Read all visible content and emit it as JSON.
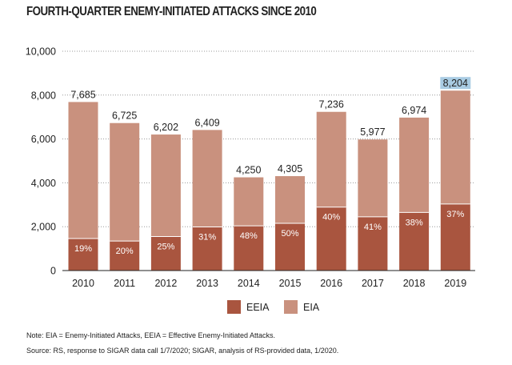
{
  "chart_data": {
    "type": "bar",
    "stacked": true,
    "title": "FOURTH-QUARTER ENEMY-INITIATED ATTACKS SINCE 2010",
    "categories": [
      "2010",
      "2011",
      "2012",
      "2013",
      "2014",
      "2015",
      "2016",
      "2017",
      "2018",
      "2019"
    ],
    "totals": [
      7685,
      6725,
      6202,
      6409,
      4250,
      4305,
      7236,
      5977,
      6974,
      8204
    ],
    "total_labels": [
      "7,685",
      "6,725",
      "6,202",
      "6,409",
      "4,250",
      "4,305",
      "7,236",
      "5,977",
      "6,974",
      "8,204"
    ],
    "eeia_percent": [
      19,
      20,
      25,
      31,
      48,
      50,
      40,
      41,
      38,
      37
    ],
    "eeia_percent_labels": [
      "19%",
      "20%",
      "25%",
      "31%",
      "48%",
      "50%",
      "40%",
      "41%",
      "38%",
      "37%"
    ],
    "series": [
      {
        "name": "EEIA",
        "color": "#a9553f"
      },
      {
        "name": "EIA",
        "color": "#c9917e"
      }
    ],
    "highlight": {
      "category": "2019",
      "color": "#a9cce3"
    },
    "ylim": [
      0,
      10000
    ],
    "yticks": [
      0,
      2000,
      4000,
      6000,
      8000,
      10000
    ],
    "ytick_labels": [
      "0",
      "2,000",
      "4,000",
      "6,000",
      "8,000",
      "10,000"
    ],
    "grid": "horizontal dotted",
    "legend": "bottom-center"
  },
  "notes": {
    "note": "Note: EIA = Enemy-Initiated Attacks, EEIA = Effective Enemy-Initiated Attacks.",
    "source": "Source: RS, response to SIGAR data call 1/7/2020; SIGAR, analysis of RS-provided data, 1/2020."
  }
}
